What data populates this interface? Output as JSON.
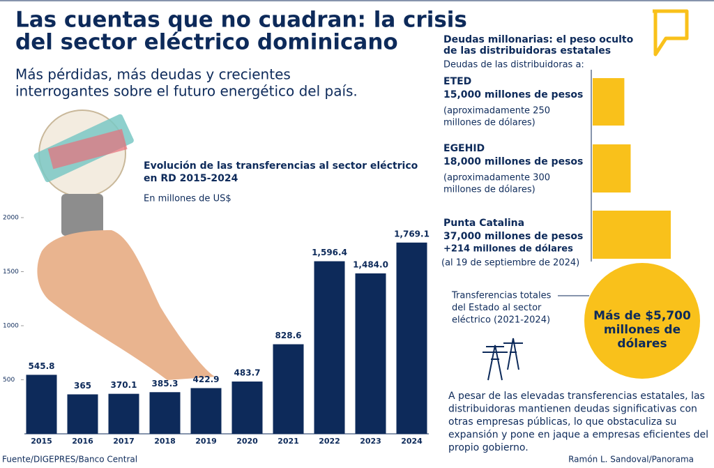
{
  "header": {
    "title_lines": [
      "Las cuentas que no cuadran: la crisis",
      "del sector eléctrico dominicano"
    ],
    "subtitle_lines": [
      "Más pérdidas, más deudas y crecientes",
      "interrogantes sobre el futuro energético del país."
    ]
  },
  "chart_data": [
    {
      "type": "bar",
      "title_lines": [
        "Evolución de las transferencias al sector eléctrico",
        "en RD 2015-2024"
      ],
      "subtitle": "En millones de US$",
      "categories": [
        "2015",
        "2016",
        "2017",
        "2018",
        "2019",
        "2020",
        "2021",
        "2022",
        "2023",
        "2024"
      ],
      "values": [
        545.8,
        365,
        370.1,
        385.3,
        422.9,
        483.7,
        828.6,
        1596.4,
        1484.0,
        1769.1
      ],
      "value_labels": [
        "545.8",
        "365",
        "370.1",
        "385.3",
        "422.9",
        "483.7",
        "828.6",
        "1,596.4",
        "1,484.0",
        "1,769.1"
      ],
      "color": "#0d2a5a",
      "ylim": [
        0,
        2000
      ],
      "yticks": [
        500,
        1000,
        1500,
        2000
      ]
    },
    {
      "type": "barh",
      "title_lines": [
        "Deudas millonarias: el peso oculto",
        "de las distribuidoras estatales"
      ],
      "subtitle": "Deudas de las distribuidoras a:",
      "categories": [
        "ETED",
        "EGEHID",
        "Punta Catalina"
      ],
      "values": [
        15000,
        18000,
        37000
      ],
      "value_labels": [
        "15,000 millones de pesos",
        "18,000 millones de pesos",
        "37,000 millones de pesos"
      ],
      "notes": [
        [
          "(aproximadamente 250",
          "millones de dólares)"
        ],
        [
          "(aproximadamente 300",
          "millones de dólares)"
        ],
        [
          "+214 millones de dólares",
          "(al 19 de septiembre de 2024)"
        ]
      ],
      "color": "#f9c11b"
    }
  ],
  "total": {
    "label_lines": [
      "Transferencias totales",
      "del Estado al sector",
      "eléctrico (2021-2024)"
    ],
    "value_lines": [
      "Más de $5,700",
      "millones de",
      "dólares"
    ]
  },
  "paragraph_lines": [
    "A pesar de las elevadas transferencias estatales, las",
    "distribuidoras mantienen deudas significativas con",
    "otras empresas públicas, lo que obstaculiza su",
    "expansión y pone en jaque a empresas eficientes del",
    "propio gobierno."
  ],
  "footer": {
    "source": "Fuente/DIGEPRES/Banco Central",
    "credit": "Ramón L. Sandoval/Panorama"
  }
}
